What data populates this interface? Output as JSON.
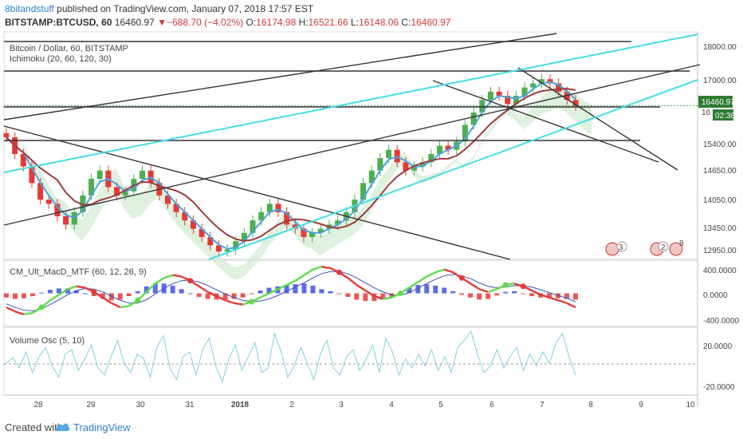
{
  "header": {
    "author": "8bitandstuff",
    "published": " published on TradingView.com, January 07, 2018 17:57 EST",
    "symbol": "BITSTAMP:BTCUSD, 60",
    "last": "16460.97",
    "arrow": "▼",
    "change": "−688.70 (−4.02%)",
    "o_label": "O:",
    "o_value": "16174.98",
    "h_label": "H:",
    "h_value": "16521.66",
    "l_label": "L:",
    "l_value": "16148.06",
    "c_label": "C:",
    "c_value": "16460.97"
  },
  "chart_data": [
    {
      "type": "candlestick",
      "title": "Bitcoin / Dollar, 60, BITSTAMP",
      "indicator": "Ichimoku (20, 60, 120, 30)",
      "ylim": [
        12800,
        18200
      ],
      "yticks": [
        "18000.00",
        "17000.00",
        "16460.97",
        "15400.00",
        "14650.00",
        "14050.00",
        "13450.00",
        "12950.00"
      ],
      "last_price": "16460.97",
      "countdown": "02:38",
      "partial_tick": "16",
      "series_close": [
        15700,
        15300,
        15000,
        14600,
        14200,
        14100,
        13800,
        13600,
        13900,
        14300,
        14700,
        14900,
        14500,
        14300,
        14400,
        14700,
        14900,
        14600,
        14300,
        14100,
        13900,
        13700,
        13500,
        13300,
        13100,
        12950,
        13000,
        13200,
        13400,
        13700,
        13900,
        14100,
        13900,
        13600,
        13500,
        13300,
        13400,
        13500,
        13600,
        13700,
        13900,
        14200,
        14600,
        14900,
        15200,
        15400,
        15100,
        14900,
        15000,
        15100,
        15300,
        15500,
        15400,
        15600,
        16000,
        16300,
        16600,
        16800,
        16700,
        16500,
        16700,
        16900,
        17000,
        17100,
        17000,
        16800,
        16600,
        16460.97
      ],
      "colors": {
        "up": "#4caf50",
        "down": "#e53935",
        "tenkan": "#4aa3df",
        "kijun": "#9e3b3b",
        "trend": "#333333",
        "channel": "#44dde6",
        "cloud_up": "#d6ecd6",
        "cloud_down": "#f6d2d2"
      }
    },
    {
      "type": "line",
      "title": "CM_Ult_MacD_MTF (60, 12, 26, 9)",
      "yticks": [
        "400.0000",
        "0.0000",
        "-400.0000"
      ],
      "ylim": [
        -450,
        450
      ],
      "macd": [
        -200,
        -260,
        -300,
        -280,
        -200,
        -100,
        -20,
        60,
        100,
        80,
        20,
        -60,
        -140,
        -200,
        -180,
        -100,
        20,
        140,
        220,
        260,
        240,
        180,
        100,
        20,
        -40,
        -100,
        -140,
        -160,
        -120,
        -60,
        0,
        60,
        120,
        180,
        260,
        340,
        380,
        360,
        300,
        220,
        120,
        40,
        -40,
        -80,
        -60,
        0,
        80,
        160,
        240,
        300,
        340,
        300,
        220,
        140,
        60,
        20,
        60,
        120,
        140,
        100,
        40,
        -20,
        -60,
        -100,
        -140,
        -200
      ],
      "signal": [
        -150,
        -200,
        -240,
        -250,
        -220,
        -160,
        -90,
        -20,
        40,
        70,
        60,
        20,
        -40,
        -100,
        -140,
        -140,
        -90,
        -10,
        70,
        140,
        180,
        190,
        160,
        110,
        50,
        -10,
        -60,
        -100,
        -120,
        -110,
        -80,
        -30,
        30,
        90,
        150,
        220,
        280,
        310,
        310,
        280,
        220,
        150,
        80,
        20,
        -20,
        -30,
        10,
        70,
        140,
        200,
        250,
        270,
        250,
        210,
        150,
        100,
        80,
        90,
        110,
        110,
        90,
        50,
        10,
        -30,
        -70,
        -120
      ],
      "hist": [
        -60,
        -80,
        -70,
        -40,
        10,
        50,
        70,
        70,
        40,
        0,
        -40,
        -80,
        -100,
        -90,
        -40,
        30,
        100,
        140,
        140,
        110,
        60,
        0,
        -50,
        -80,
        -90,
        -90,
        -80,
        -60,
        -10,
        40,
        80,
        100,
        120,
        130,
        140,
        110,
        60,
        30,
        -10,
        -50,
        -90,
        -110,
        -110,
        -90,
        -50,
        20,
        80,
        120,
        130,
        110,
        80,
        30,
        -20,
        -60,
        -90,
        -80,
        -30,
        20,
        30,
        -10,
        -40,
        -60,
        -70,
        -70,
        -80,
        -90
      ]
    },
    {
      "type": "line",
      "title": "Volume Osc (5, 10)",
      "yticks": [
        "20.0000",
        "-20.0000"
      ],
      "ylim": [
        -28,
        28
      ],
      "values": [
        -2,
        3,
        -6,
        8,
        -10,
        4,
        12,
        -4,
        -14,
        6,
        10,
        -8,
        2,
        14,
        -6,
        -12,
        4,
        18,
        -2,
        -10,
        6,
        2,
        -14,
        12,
        22,
        -6,
        -16,
        4,
        8,
        -12,
        10,
        20,
        -4,
        -18,
        2,
        14,
        -8,
        4,
        16,
        -10,
        -6,
        24,
        8,
        -14,
        -4,
        12,
        -2,
        -16,
        6,
        18,
        -6,
        -12,
        4,
        10,
        -8,
        2,
        14,
        -10,
        20,
        8,
        -12,
        2,
        -6,
        6,
        -4,
        10,
        -8,
        4,
        -10,
        12,
        18,
        26,
        6,
        -10,
        -4,
        10,
        -6,
        4,
        12,
        -8,
        6,
        -4,
        8,
        -2,
        16,
        24,
        4,
        -12
      ]
    }
  ],
  "xaxis": {
    "labels": [
      "28",
      "29",
      "30",
      "31",
      "2018",
      "2",
      "3",
      "4",
      "5",
      "6",
      "7",
      "8",
      "9",
      "10"
    ]
  },
  "footer": {
    "created_with": "Created with",
    "brand": "TradingView"
  }
}
